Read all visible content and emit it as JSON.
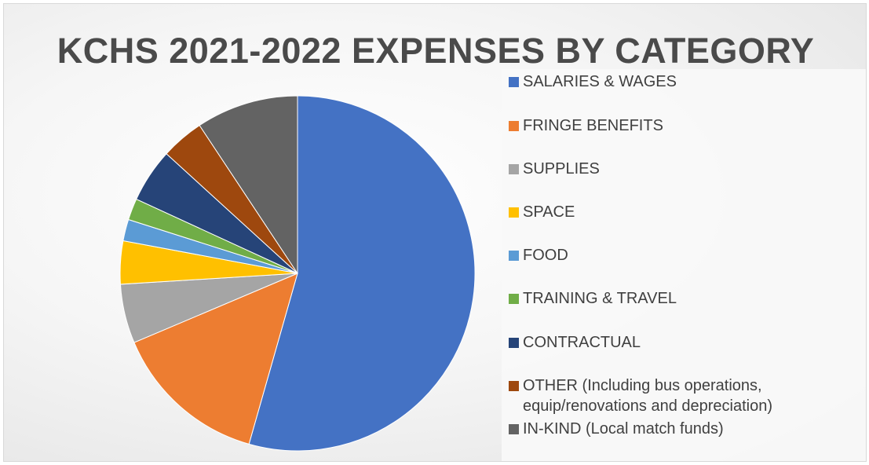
{
  "chart_data": {
    "type": "pie",
    "title": "KCHS 2021-2022 EXPENSES BY CATEGORY",
    "legend_position": "right",
    "slices": [
      {
        "label": "SALARIES & WAGES",
        "value": 55.5,
        "color": "#4472C4"
      },
      {
        "label": "FRINGE BENEFITS",
        "value": 14.5,
        "color": "#ED7D31"
      },
      {
        "label": "SUPPLIES",
        "value": 5.5,
        "color": "#A5A5A5"
      },
      {
        "label": "SPACE",
        "value": 4.0,
        "color": "#FFC000"
      },
      {
        "label": "FOOD",
        "value": 2.0,
        "color": "#5B9BD5"
      },
      {
        "label": "TRAINING & TRAVEL",
        "value": 2.0,
        "color": "#70AD47"
      },
      {
        "label": "CONTRACTUAL",
        "value": 5.0,
        "color": "#264478"
      },
      {
        "label": "OTHER (Including bus operations,\nequip/renovations and depreciation)",
        "value": 4.0,
        "color": "#9E480E"
      },
      {
        "label": "IN-KIND (Local match funds)",
        "value": 9.5,
        "color": "#636363"
      }
    ]
  }
}
